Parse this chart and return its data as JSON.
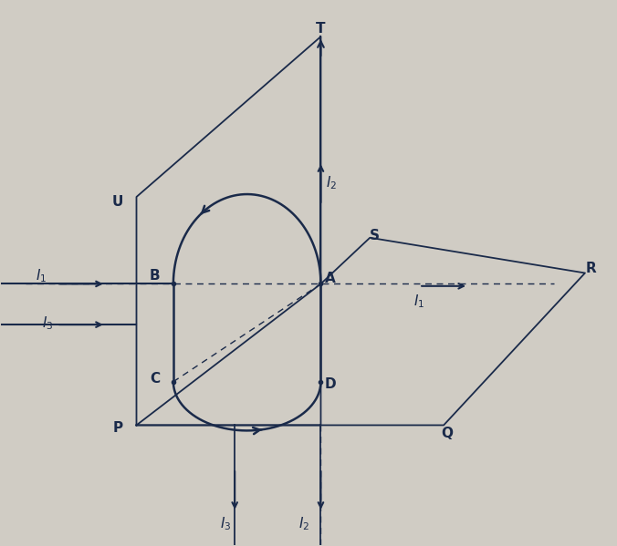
{
  "bg_color": "#d0ccc4",
  "line_color": "#1a2a4a",
  "figsize": [
    6.76,
    5.99
  ],
  "dpi": 100,
  "labels": {
    "A": [
      0.535,
      0.49,
      "A"
    ],
    "B": [
      0.25,
      0.495,
      "B"
    ],
    "C": [
      0.25,
      0.305,
      "C"
    ],
    "D": [
      0.535,
      0.295,
      "D"
    ],
    "P": [
      0.19,
      0.215,
      "P"
    ],
    "U": [
      0.19,
      0.63,
      "U"
    ],
    "T": [
      0.52,
      0.95,
      "T"
    ],
    "S": [
      0.608,
      0.568,
      "S"
    ],
    "R": [
      0.96,
      0.508,
      "R"
    ],
    "Q": [
      0.725,
      0.205,
      "Q"
    ],
    "I1_left": [
      0.065,
      0.495,
      "$I_1$"
    ],
    "I1_right": [
      0.68,
      0.448,
      "$I_1$"
    ],
    "I2_top": [
      0.538,
      0.665,
      "$I_2$"
    ],
    "I3_left": [
      0.075,
      0.408,
      "$I_3$"
    ],
    "I3_bot": [
      0.365,
      0.038,
      "$I_3$"
    ],
    "I2_bot": [
      0.492,
      0.038,
      "$I_2$"
    ]
  }
}
